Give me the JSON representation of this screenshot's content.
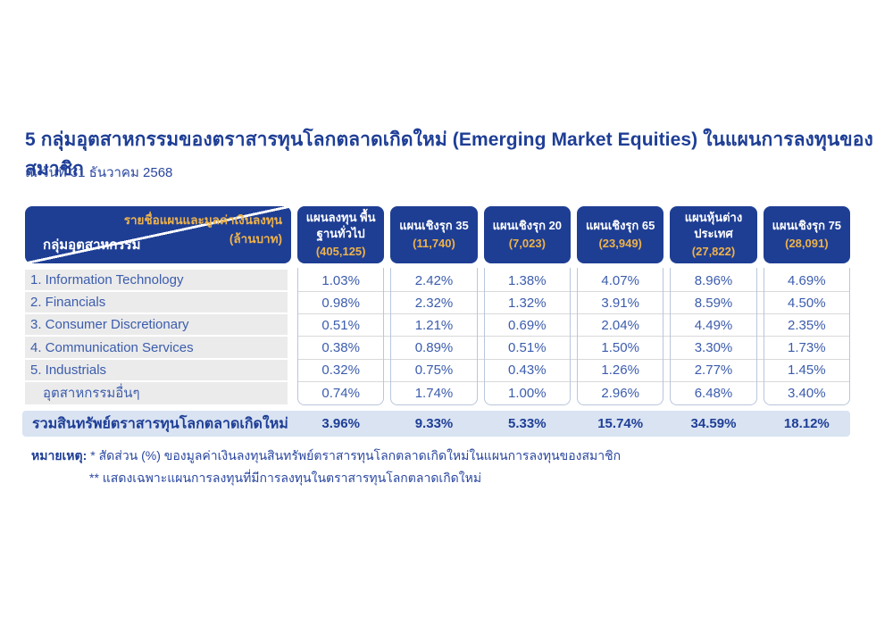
{
  "page": {
    "title": "5 กลุ่มอุตสาหกรรมของตราสารทุนโลกตลาดเกิดใหม่ (Emerging Market Equities) ในแผนการลงทุนของสมาชิก",
    "as_of_date": "ณ วันที่ 31 ธันวาคม 2568"
  },
  "colors": {
    "brand_navy": "#1e3e94",
    "accent_gold": "#eeb24a",
    "value_blue": "#3b5cad",
    "total_bar_blue": "#d9e3f2",
    "label_block_gray": "#ebebeb",
    "column_border": "#b9c6dc"
  },
  "table": {
    "corner": {
      "top_right_line1": "รายชื่อแผนและมูลค่าเงินลงทุน",
      "top_right_line2": "(ล้านบาท)",
      "bottom_left": "กลุ่มอุตสาหกรรม"
    },
    "plans": [
      {
        "name": "แผนลงทุน พื้นฐานทั่วไป",
        "value_m": "(405,125)"
      },
      {
        "name": "แผนเชิงรุก 35",
        "value_m": "(11,740)"
      },
      {
        "name": "แผนเชิงรุก 20",
        "value_m": "(7,023)"
      },
      {
        "name": "แผนเชิงรุก 65",
        "value_m": "(23,949)"
      },
      {
        "name": "แผนหุ้นต่างประเทศ",
        "value_m": "(27,822)"
      },
      {
        "name": "แผนเชิงรุก 75",
        "value_m": "(28,091)"
      }
    ],
    "rows": [
      {
        "label": "1. Information Technology",
        "values": [
          "1.03%",
          "2.42%",
          "1.38%",
          "4.07%",
          "8.96%",
          "4.69%"
        ]
      },
      {
        "label": "2. Financials",
        "values": [
          "0.98%",
          "2.32%",
          "1.32%",
          "3.91%",
          "8.59%",
          "4.50%"
        ]
      },
      {
        "label": "3. Consumer Discretionary",
        "values": [
          "0.51%",
          "1.21%",
          "0.69%",
          "2.04%",
          "4.49%",
          "2.35%"
        ]
      },
      {
        "label": "4. Communication Services",
        "values": [
          "0.38%",
          "0.89%",
          "0.51%",
          "1.50%",
          "3.30%",
          "1.73%"
        ]
      },
      {
        "label": "5. Industrials",
        "values": [
          "0.32%",
          "0.75%",
          "0.43%",
          "1.26%",
          "2.77%",
          "1.45%"
        ]
      },
      {
        "label": "อุตสาหกรรมอื่นๆ",
        "values": [
          "0.74%",
          "1.74%",
          "1.00%",
          "2.96%",
          "6.48%",
          "3.40%"
        ]
      }
    ],
    "total": {
      "label": "รวมสินทรัพย์ตราสารทุนโลกตลาดเกิดใหม่",
      "values": [
        "3.96%",
        "9.33%",
        "5.33%",
        "15.74%",
        "34.59%",
        "18.12%"
      ]
    }
  },
  "notes": {
    "prefix": "หมายเหตุ:",
    "line1": "* สัดส่วน (%) ของมูลค่าเงินลงทุนสินทรัพย์ตราสารทุนโลกตลาดเกิดใหม่ในแผนการลงทุนของสมาชิก",
    "line2": "** แสดงเฉพาะแผนการลงทุนที่มีการลงทุนในตราสารทุนโลกตลาดเกิดใหม่"
  }
}
